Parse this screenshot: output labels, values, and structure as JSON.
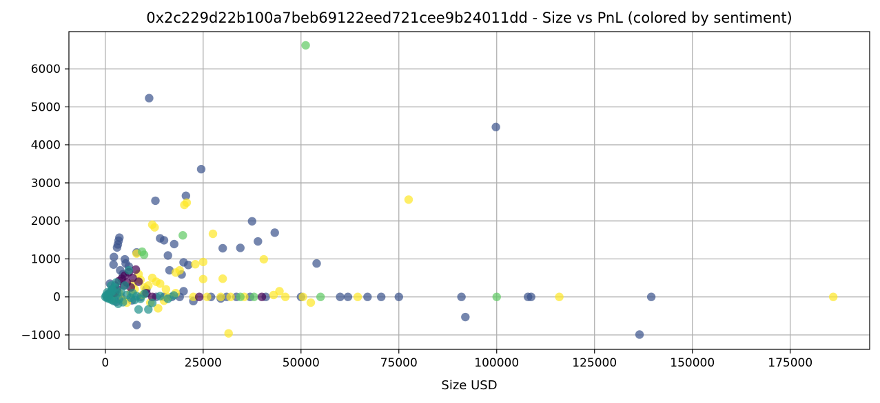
{
  "chart_data": {
    "type": "scatter",
    "title": "0x2c229d22b100a7beb69122eed721cee9b24011dd - Size vs PnL (colored by sentiment)",
    "xlabel": "Size USD",
    "ylabel": "",
    "xlim": [
      -9300,
      195300
    ],
    "ylim": [
      -1380,
      6980
    ],
    "xticks": [
      0,
      25000,
      50000,
      75000,
      100000,
      125000,
      150000,
      175000
    ],
    "yticks": [
      -1000,
      0,
      1000,
      2000,
      3000,
      4000,
      5000,
      6000
    ],
    "grid": true,
    "legend": "none",
    "palette": {
      "purple": "#440154",
      "blue": "#3b528b",
      "teal": "#21918c",
      "green": "#5ec962",
      "yellow": "#fde725"
    },
    "series": [
      {
        "color_key": "blue",
        "points": [
          [
            11200,
            5230
          ],
          [
            24500,
            3360
          ],
          [
            12800,
            2530
          ],
          [
            20600,
            2660
          ],
          [
            37500,
            1990
          ],
          [
            43300,
            1690
          ],
          [
            39000,
            1460
          ],
          [
            34500,
            1290
          ],
          [
            30000,
            1280
          ],
          [
            14000,
            1540
          ],
          [
            15000,
            1490
          ],
          [
            17600,
            1390
          ],
          [
            3600,
            1560
          ],
          [
            3400,
            1480
          ],
          [
            3200,
            1380
          ],
          [
            3000,
            1300
          ],
          [
            16000,
            1090
          ],
          [
            2200,
            1050
          ],
          [
            8000,
            1170
          ],
          [
            5000,
            990
          ],
          [
            20000,
            910
          ],
          [
            21200,
            840
          ],
          [
            5200,
            880
          ],
          [
            2100,
            850
          ],
          [
            16400,
            700
          ],
          [
            19500,
            590
          ],
          [
            54000,
            880
          ],
          [
            99800,
            4470
          ],
          [
            92000,
            -530
          ],
          [
            136500,
            -990
          ],
          [
            139500,
            0
          ],
          [
            108000,
            0
          ],
          [
            108800,
            0
          ],
          [
            91000,
            0
          ],
          [
            75000,
            0
          ],
          [
            70500,
            0
          ],
          [
            67000,
            0
          ],
          [
            62000,
            0
          ],
          [
            60000,
            0
          ],
          [
            50000,
            0
          ],
          [
            41000,
            0
          ],
          [
            37000,
            0
          ],
          [
            33500,
            0
          ],
          [
            31000,
            0
          ],
          [
            29500,
            -40
          ],
          [
            27000,
            0
          ],
          [
            22500,
            -110
          ],
          [
            20000,
            150
          ],
          [
            19000,
            0
          ],
          [
            17000,
            0
          ],
          [
            15000,
            0
          ],
          [
            13000,
            0
          ],
          [
            9000,
            0
          ],
          [
            4000,
            0
          ],
          [
            2500,
            300
          ],
          [
            1800,
            200
          ],
          [
            1200,
            350
          ],
          [
            6000,
            800
          ],
          [
            4500,
            600
          ],
          [
            3800,
            700
          ],
          [
            10500,
            200
          ],
          [
            8000,
            -740
          ],
          [
            6800,
            -90
          ],
          [
            2800,
            -130
          ],
          [
            500,
            0
          ],
          [
            1000,
            100
          ]
        ]
      },
      {
        "color_key": "yellow",
        "points": [
          [
            77500,
            2560
          ],
          [
            20200,
            2420
          ],
          [
            20800,
            2480
          ],
          [
            12000,
            1900
          ],
          [
            12600,
            1830
          ],
          [
            27500,
            1660
          ],
          [
            40500,
            990
          ],
          [
            25000,
            920
          ],
          [
            23000,
            860
          ],
          [
            8000,
            1140
          ],
          [
            18000,
            640
          ],
          [
            19000,
            700
          ],
          [
            25000,
            470
          ],
          [
            30000,
            480
          ],
          [
            44500,
            150
          ],
          [
            43000,
            50
          ],
          [
            52500,
            -150
          ],
          [
            31500,
            -960
          ],
          [
            186000,
            0
          ],
          [
            116000,
            0
          ],
          [
            64500,
            0
          ],
          [
            50500,
            0
          ],
          [
            46000,
            0
          ],
          [
            35500,
            0
          ],
          [
            32000,
            0
          ],
          [
            29500,
            0
          ],
          [
            26000,
            0
          ],
          [
            22500,
            0
          ],
          [
            18000,
            100
          ],
          [
            15500,
            200
          ],
          [
            14000,
            350
          ],
          [
            13000,
            400
          ],
          [
            12000,
            500
          ],
          [
            11000,
            300
          ],
          [
            10000,
            250
          ],
          [
            9000,
            450
          ],
          [
            8500,
            600
          ],
          [
            7500,
            200
          ],
          [
            6500,
            100
          ],
          [
            5500,
            -150
          ],
          [
            4500,
            -80
          ],
          [
            3500,
            100
          ],
          [
            15000,
            -100
          ],
          [
            16000,
            0
          ],
          [
            13500,
            -300
          ],
          [
            11500,
            -150
          ],
          [
            9500,
            50
          ],
          [
            7000,
            350
          ]
        ]
      },
      {
        "color_key": "green",
        "points": [
          [
            51200,
            6620
          ],
          [
            19800,
            1620
          ],
          [
            9400,
            1190
          ],
          [
            9900,
            1110
          ],
          [
            100000,
            0
          ],
          [
            55000,
            0
          ],
          [
            38000,
            0
          ],
          [
            34500,
            0
          ],
          [
            1000,
            0
          ],
          [
            2000,
            50
          ],
          [
            1500,
            -50
          ]
        ]
      },
      {
        "color_key": "purple",
        "points": [
          [
            7800,
            720
          ],
          [
            6000,
            650
          ],
          [
            5000,
            560
          ],
          [
            4200,
            480
          ],
          [
            3500,
            420
          ],
          [
            5500,
            380
          ],
          [
            4800,
            300
          ],
          [
            6500,
            250
          ],
          [
            40000,
            0
          ],
          [
            24000,
            0
          ],
          [
            10500,
            100
          ],
          [
            12000,
            0
          ],
          [
            3000,
            200
          ],
          [
            2500,
            100
          ],
          [
            7000,
            500
          ],
          [
            8500,
            400
          ]
        ]
      },
      {
        "color_key": "teal",
        "points": [
          [
            0,
            0
          ],
          [
            200,
            40
          ],
          [
            400,
            -30
          ],
          [
            600,
            60
          ],
          [
            800,
            20
          ],
          [
            1000,
            -50
          ],
          [
            1200,
            80
          ],
          [
            1400,
            120
          ],
          [
            1600,
            -80
          ],
          [
            1800,
            200
          ],
          [
            2000,
            160
          ],
          [
            2200,
            -110
          ],
          [
            2500,
            250
          ],
          [
            3000,
            90
          ],
          [
            3500,
            -60
          ],
          [
            4000,
            140
          ],
          [
            4500,
            -140
          ],
          [
            5000,
            300
          ],
          [
            5500,
            50
          ],
          [
            6000,
            700
          ],
          [
            6500,
            -20
          ],
          [
            7000,
            100
          ],
          [
            8000,
            20
          ],
          [
            9000,
            -50
          ],
          [
            10000,
            80
          ],
          [
            11000,
            -330
          ],
          [
            12000,
            -160
          ],
          [
            14000,
            20
          ],
          [
            16000,
            -50
          ],
          [
            17500,
            40
          ],
          [
            1500,
            300
          ],
          [
            2800,
            380
          ],
          [
            3300,
            -180
          ],
          [
            7500,
            -80
          ],
          [
            8500,
            -330
          ],
          [
            500,
            120
          ]
        ]
      }
    ]
  }
}
